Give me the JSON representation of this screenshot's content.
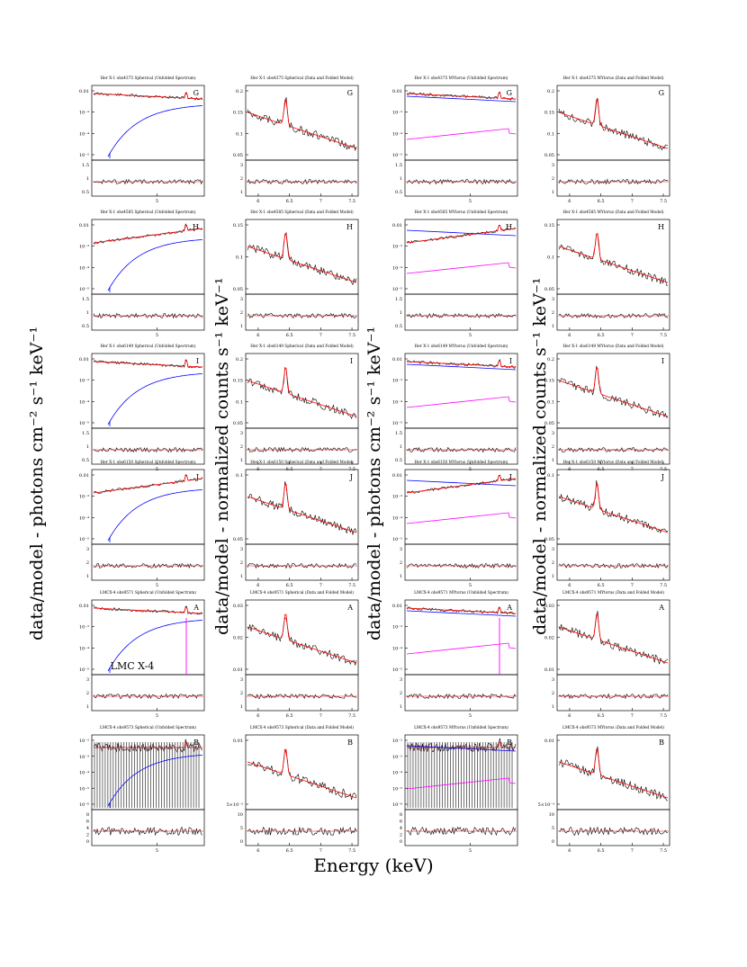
{
  "figure": {
    "xlabel": "Energy (keV)",
    "ylabel_left": "data/model - photons cm⁻² s⁻¹ keV⁻¹",
    "ylabel_right": "data/model - normalized counts s⁻¹ keV⁻¹",
    "colors": {
      "data": "#000000",
      "model": "#ff0000",
      "component_blue": "#0000ff",
      "component_magenta": "#ff00ff"
    }
  },
  "chart_data": [
    {
      "type": "line",
      "row": "G",
      "col": 1,
      "title": "Her X-1 obs4375 Spherical (Unfolded Spectrum)",
      "letter": "G",
      "kind": "unfolded",
      "model": "Spherical",
      "xticks": [
        "5"
      ],
      "yticks": [
        "0.01",
        "10⁻³",
        "10⁻⁴",
        "10⁻⁵"
      ],
      "rticks": [
        "1.5",
        "1",
        "0.5"
      ]
    },
    {
      "type": "line",
      "row": "G",
      "col": 2,
      "title": "Her X-1 obs4375 Spherical (Data and Folded Model)",
      "letter": "G",
      "kind": "folded",
      "model": "Spherical",
      "xticks": [
        "6",
        "6.5",
        "7",
        "7.5"
      ],
      "yticks": [
        "0.2",
        "0.15",
        "0.1",
        "0.05"
      ],
      "rticks": [
        "3",
        "2",
        "1"
      ],
      "xlim": [
        5.8,
        7.6
      ]
    },
    {
      "type": "line",
      "row": "G",
      "col": 3,
      "title": "Her X-1 obs4375 MYtorus (Unfolded Spectrum)",
      "letter": "G",
      "kind": "unfolded",
      "model": "MYtorus",
      "xticks": [
        "5"
      ],
      "yticks": [
        "0.01",
        "10⁻³",
        "10⁻⁴",
        "10⁻⁵"
      ],
      "rticks": [
        "1.5",
        "1",
        "0.5"
      ]
    },
    {
      "type": "line",
      "row": "G",
      "col": 4,
      "title": "Her X-1 obs4375 MYtorus (Data and Folded Model)",
      "letter": "G",
      "kind": "folded",
      "model": "MYtorus",
      "xticks": [
        "6",
        "6.5",
        "7",
        "7.5"
      ],
      "yticks": [
        "0.2",
        "0.15",
        "0.1",
        "0.05"
      ],
      "rticks": [
        "3",
        "2",
        "1"
      ],
      "xlim": [
        5.8,
        7.6
      ]
    },
    {
      "type": "line",
      "row": "H",
      "col": 1,
      "title": "Her X-1 obs4585 Spherical (Unfolded Spectrum)",
      "letter": "H",
      "kind": "unfolded",
      "model": "Spherical",
      "xticks": [
        "5"
      ],
      "yticks": [
        "0.01",
        "10⁻³",
        "10⁻⁴",
        "10⁻⁵"
      ],
      "rticks": [
        "1.5",
        "1",
        "0.5"
      ]
    },
    {
      "type": "line",
      "row": "H",
      "col": 2,
      "title": "Her X-1 obs4585 Spherical (Data and Folded Model)",
      "letter": "H",
      "kind": "folded",
      "model": "Spherical",
      "xticks": [
        "6",
        "6.5",
        "7",
        "7.5"
      ],
      "yticks": [
        "0.15",
        "0.1",
        "0.05"
      ],
      "rticks": [
        "3",
        "2",
        "1"
      ],
      "xlim": [
        5.8,
        7.6
      ]
    },
    {
      "type": "line",
      "row": "H",
      "col": 3,
      "title": "Her X-1 obs4585 MYtorus (Unfolded Spectrum)",
      "letter": "H",
      "kind": "unfolded",
      "model": "MYtorus",
      "xticks": [
        "5"
      ],
      "yticks": [
        "0.01",
        "10⁻³",
        "10⁻⁴",
        "10⁻⁵"
      ],
      "rticks": [
        "1.5",
        "1",
        "0.5"
      ]
    },
    {
      "type": "line",
      "row": "H",
      "col": 4,
      "title": "Her X-1 obs4585 MYtorus (Data and Folded Model)",
      "letter": "H",
      "kind": "folded",
      "model": "MYtorus",
      "xticks": [
        "6",
        "6.5",
        "7",
        "7.5"
      ],
      "yticks": [
        "0.15",
        "0.1",
        "0.05"
      ],
      "rticks": [
        "3",
        "2",
        "1"
      ],
      "xlim": [
        5.8,
        7.6
      ]
    },
    {
      "type": "line",
      "row": "I",
      "col": 1,
      "title": "Her X-1 obs6149 Spherical (Unfolded Spectrum)",
      "letter": "I",
      "kind": "unfolded",
      "model": "Spherical",
      "xticks": [
        "5"
      ],
      "yticks": [
        "0.01",
        "10⁻³",
        "10⁻⁴",
        "10⁻⁵"
      ],
      "rticks": [
        "1.5",
        "1",
        "0.5"
      ]
    },
    {
      "type": "line",
      "row": "I",
      "col": 2,
      "title": "Her X-1 obs6149 Spherical (Data and Folded Model)",
      "letter": "I",
      "kind": "folded",
      "model": "Spherical",
      "xticks": [
        "6",
        "6.5",
        "7",
        "7.5"
      ],
      "yticks": [
        "0.2",
        "0.15",
        "0.1",
        "0.05"
      ],
      "rticks": [
        "3",
        "2",
        "1"
      ],
      "xlim": [
        5.8,
        7.6
      ]
    },
    {
      "type": "line",
      "row": "I",
      "col": 3,
      "title": "Her X-1 obs6149 MYtorus (Unfolded Spectrum)",
      "letter": "I",
      "kind": "unfolded",
      "model": "MYtorus",
      "xticks": [
        "5"
      ],
      "yticks": [
        "0.01",
        "10⁻³",
        "10⁻⁴",
        "10⁻⁵"
      ],
      "rticks": [
        "1.5",
        "1",
        "0.5"
      ]
    },
    {
      "type": "line",
      "row": "I",
      "col": 4,
      "title": "Her X-1 obs6149 MYtorus (Data and Folded Model)",
      "letter": "I",
      "kind": "folded",
      "model": "MYtorus",
      "xticks": [
        "6",
        "6.5",
        "7",
        "7.5"
      ],
      "yticks": [
        "0.2",
        "0.15",
        "0.1",
        "0.05"
      ],
      "rticks": [
        "3",
        "2",
        "1"
      ],
      "xlim": [
        5.8,
        7.6
      ]
    },
    {
      "type": "line",
      "row": "J",
      "col": 1,
      "title": "Her X-1 obs6150 Spherical (Unfolded Spectrum)",
      "letter": "J",
      "kind": "unfolded",
      "model": "Spherical",
      "xticks": [
        "5"
      ],
      "yticks": [
        "0.01",
        "10⁻³",
        "10⁻⁴",
        "10⁻⁵"
      ],
      "rticks": [
        "3",
        "2",
        "1"
      ]
    },
    {
      "type": "line",
      "row": "J",
      "col": 2,
      "title": "Her X-1 obs6150 Spherical (Data and Folded Model)",
      "letter": "J",
      "kind": "folded",
      "model": "Spherical",
      "xticks": [
        "6",
        "6.5",
        "7",
        "7.5"
      ],
      "yticks": [
        "0.1",
        "0.05"
      ],
      "rticks": [
        "3",
        "2",
        "1"
      ],
      "xlim": [
        5.8,
        7.6
      ]
    },
    {
      "type": "line",
      "row": "J",
      "col": 3,
      "title": "Her X-1 obs6150 MYtorus (Unfolded Spectrum)",
      "letter": "J",
      "kind": "unfolded",
      "model": "MYtorus",
      "xticks": [
        "5"
      ],
      "yticks": [
        "0.01",
        "10⁻³",
        "10⁻⁴",
        "10⁻⁵"
      ],
      "rticks": [
        "3",
        "2",
        "1"
      ]
    },
    {
      "type": "line",
      "row": "J",
      "col": 4,
      "title": "Her X-1 obs6150 MYtorus (Data and Folded Model)",
      "letter": "J",
      "kind": "folded",
      "model": "MYtorus",
      "xticks": [
        "6",
        "6.5",
        "7",
        "7.5"
      ],
      "yticks": [
        "0.1",
        "0.05"
      ],
      "rticks": [
        "3",
        "2",
        "1"
      ],
      "xlim": [
        5.8,
        7.6
      ]
    },
    {
      "type": "line",
      "row": "A",
      "col": 1,
      "title": "LMCX-4 obs9571 Spherical (Unfolded Spectrum)",
      "letter": "A",
      "kind": "unfolded",
      "model": "Spherical",
      "source_label": "LMC X-4",
      "xticks": [
        "5"
      ],
      "yticks": [
        "0.01",
        "10⁻³",
        "10⁻⁴",
        "10⁻⁵"
      ],
      "rticks": [
        "3",
        "2",
        "1"
      ]
    },
    {
      "type": "line",
      "row": "A",
      "col": 2,
      "title": "LMCX-4 obs9571 Spherical (Data and Folded Model)",
      "letter": "A",
      "kind": "folded",
      "model": "Spherical",
      "xticks": [
        "6",
        "6.5",
        "7",
        "7.5"
      ],
      "yticks": [
        "0.03",
        "0.02",
        "0.01"
      ],
      "rticks": [
        "3",
        "2",
        "1"
      ],
      "xlim": [
        5.8,
        7.6
      ]
    },
    {
      "type": "line",
      "row": "A",
      "col": 3,
      "title": "LMCX-4 obs9571 MYtorus (Unfolded Spectrum)",
      "letter": "A",
      "kind": "unfolded",
      "model": "MYtorus",
      "xticks": [
        "5"
      ],
      "yticks": [
        "0.01",
        "10⁻³",
        "10⁻⁴",
        "10⁻⁵"
      ],
      "rticks": [
        "3",
        "2",
        "1"
      ]
    },
    {
      "type": "line",
      "row": "A",
      "col": 4,
      "title": "LMCX-4 obs9571 MYtorus (Data and Folded Model)",
      "letter": "A",
      "kind": "folded",
      "model": "MYtorus",
      "xticks": [
        "6",
        "6.5",
        "7",
        "7.5"
      ],
      "yticks": [
        "0.03",
        "0.02",
        "0.01"
      ],
      "rticks": [
        "3",
        "2",
        "1"
      ],
      "xlim": [
        5.8,
        7.6
      ]
    },
    {
      "type": "line",
      "row": "B",
      "col": 1,
      "title": "LMCX-4 obs9573 Spherical (Unfolded Spectrum)",
      "letter": "B",
      "kind": "unfolded",
      "model": "Spherical",
      "xticks": [
        "5"
      ],
      "yticks": [
        "10⁻²",
        "10⁻³",
        "10⁻⁴",
        "10⁻⁵",
        "10⁻⁶"
      ],
      "rticks": [
        "8",
        "6",
        "4",
        "2",
        "0"
      ]
    },
    {
      "type": "line",
      "row": "B",
      "col": 2,
      "title": "LMCX-4 obs9573 Spherical (Data and Folded Model)",
      "letter": "B",
      "kind": "folded",
      "model": "Spherical",
      "xticks": [
        "6",
        "6.5",
        "7",
        "7.5"
      ],
      "yticks": [
        "0.01",
        "5×10⁻³"
      ],
      "rticks": [
        "10",
        "5",
        "0"
      ],
      "xlim": [
        5.8,
        7.6
      ]
    },
    {
      "type": "line",
      "row": "B",
      "col": 3,
      "title": "LMCX-4 obs9573 MYtorus (Unfolded Spectrum)",
      "letter": "B",
      "kind": "unfolded",
      "model": "MYtorus",
      "xticks": [
        "5"
      ],
      "yticks": [
        "10⁻²",
        "10⁻³",
        "10⁻⁴",
        "10⁻⁵",
        "10⁻⁶"
      ],
      "rticks": [
        "8",
        "6",
        "4",
        "2",
        "0"
      ]
    },
    {
      "type": "line",
      "row": "B",
      "col": 4,
      "title": "LMCX-4 obs9573 MYtorus (Data and Folded Model)",
      "letter": "B",
      "kind": "folded",
      "model": "MYtorus",
      "xticks": [
        "6",
        "6.5",
        "7",
        "7.5"
      ],
      "yticks": [
        "0.01",
        "5×10⁻³"
      ],
      "rticks": [
        "10",
        "5",
        "0"
      ],
      "xlim": [
        5.8,
        7.6
      ]
    }
  ]
}
